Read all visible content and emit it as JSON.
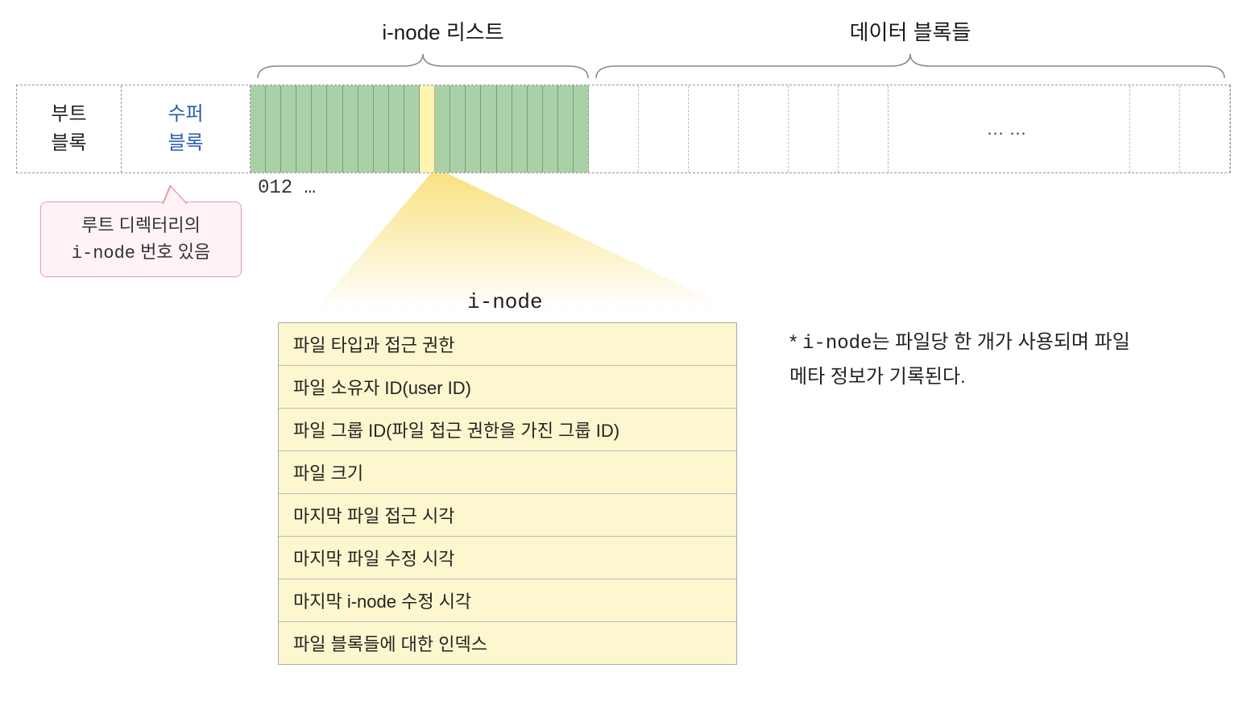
{
  "labels": {
    "inode_list": "i-node 리스트",
    "data_blocks": "데이터 블록들",
    "boot_block": "부트\n블록",
    "super_block": "수퍼\n블록",
    "indices": "012 …",
    "inode_heading": "i-node",
    "data_ellipsis": "……"
  },
  "callout": {
    "line1": "루트 디렉터리의",
    "line2_mono": "i-node",
    "line2_rest": " 번호 있음"
  },
  "inode_fields": [
    "파일 타입과 접근 권한",
    "파일 소유자 ID(user ID)",
    "파일 그룹 ID(파일 접근 권한을 가진 그룹 ID)",
    "파일 크기",
    "마지막 파일 접근 시각",
    "마지막 파일 수정 시각",
    "마지막 i-node 수정 시각",
    "파일 블록들에 대한 인덱스"
  ],
  "note": {
    "prefix": "* ",
    "mono": "i-node",
    "rest": "는 파일당 한 개가 사용되며 파일 메타 정보가 기록된다."
  },
  "style": {
    "colors": {
      "inode_fill": "#a9d0a6",
      "highlight": "#fff3b0",
      "callout_border": "#e89aa8",
      "callout_fill": "#fff3f5",
      "table_fill": "#fdf7cf",
      "super_text": "#2a5fad",
      "beam": "#f8e07a"
    },
    "layout": {
      "inode_slot_count": 22,
      "highlight_index": 11,
      "data_block_small_count": 6,
      "data_block_tail_count": 2
    }
  }
}
